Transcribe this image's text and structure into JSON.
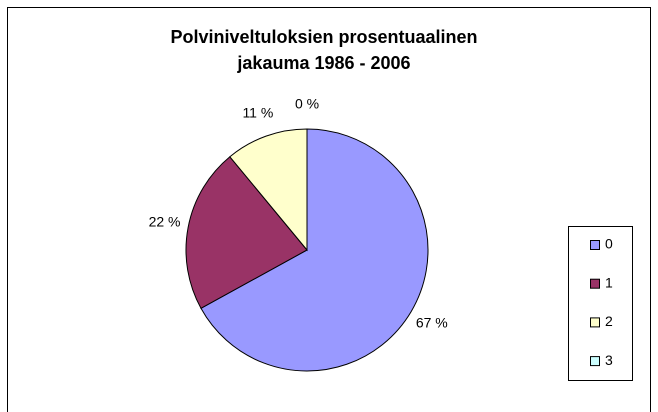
{
  "chart_data": {
    "type": "pie",
    "title": [
      "Polviniveltuloksien prosentuaalinen",
      "jakauma 1986 - 2006"
    ],
    "categories": [
      "0",
      "1",
      "2",
      "3"
    ],
    "values": [
      67,
      22,
      11,
      0
    ],
    "value_labels": [
      "67 %",
      "22 %",
      "11 %",
      "0 %"
    ],
    "colors": [
      "#9999ff",
      "#993366",
      "#ffffcc",
      "#ccffff"
    ],
    "legend": "right"
  }
}
